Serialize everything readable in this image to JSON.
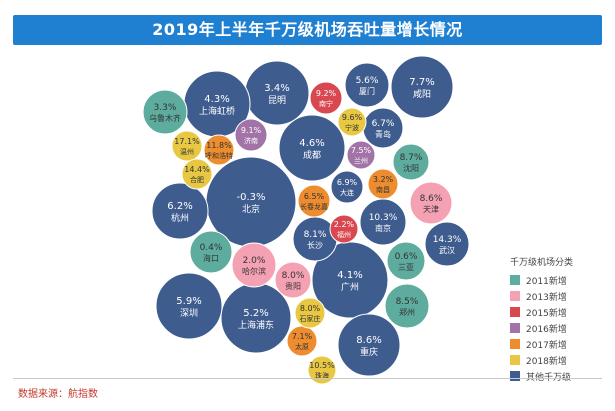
{
  "title": "2019年上半年千万级机场吞吐量增长情况",
  "source": "数据来源：航指数",
  "colors": {
    "2011新增": "#5dac9e",
    "2013新增": "#f4a1b3",
    "2015新增": "#d94851",
    "2016新增": "#a173a6",
    "2017新增": "#ed8d2f",
    "2018新增": "#e8c743",
    "其他千万级": "#3f5c8f"
  },
  "chart_data": {
    "type": "bubble",
    "title": "2019年上半年千万级机场吞吐量增长情况",
    "legend_title": "千万级机场分类",
    "legend_position": "right",
    "categories": [
      "2011新增",
      "2013新增",
      "2015新增",
      "2016新增",
      "2017新增",
      "2018新增",
      "其他千万级"
    ],
    "points": [
      {
        "city": "北京",
        "growth": "-0.3%",
        "category": "其他千万级"
      },
      {
        "city": "上海浦东",
        "growth": "5.2%",
        "category": "其他千万级"
      },
      {
        "city": "广州",
        "growth": "4.1%",
        "category": "其他千万级"
      },
      {
        "city": "成都",
        "growth": "4.6%",
        "category": "其他千万级"
      },
      {
        "city": "深圳",
        "growth": "5.9%",
        "category": "其他千万级"
      },
      {
        "city": "昆明",
        "growth": "3.4%",
        "category": "其他千万级"
      },
      {
        "city": "上海虹桥",
        "growth": "4.3%",
        "category": "其他千万级"
      },
      {
        "city": "咸阳",
        "growth": "7.7%",
        "category": "其他千万级"
      },
      {
        "city": "重庆",
        "growth": "8.6%",
        "category": "其他千万级"
      },
      {
        "city": "杭州",
        "growth": "6.2%",
        "category": "其他千万级"
      },
      {
        "city": "南京",
        "growth": "10.3%",
        "category": "其他千万级"
      },
      {
        "city": "长沙",
        "growth": "8.1%",
        "category": "其他千万级"
      },
      {
        "city": "武汉",
        "growth": "14.3%",
        "category": "其他千万级"
      },
      {
        "city": "厦门",
        "growth": "5.6%",
        "category": "其他千万级"
      },
      {
        "city": "青岛",
        "growth": "6.7%",
        "category": "其他千万级"
      },
      {
        "city": "大连",
        "growth": "6.9%",
        "category": "其他千万级"
      },
      {
        "city": "海口",
        "growth": "0.4%",
        "category": "2011新增"
      },
      {
        "city": "乌鲁木齐",
        "growth": "3.3%",
        "category": "2011新增"
      },
      {
        "city": "沈阳",
        "growth": "8.7%",
        "category": "2011新增"
      },
      {
        "city": "三亚",
        "growth": "0.6%",
        "category": "2011新增"
      },
      {
        "city": "郑州",
        "growth": "8.5%",
        "category": "2011新增"
      },
      {
        "city": "哈尔滨",
        "growth": "2.0%",
        "category": "2013新增"
      },
      {
        "city": "贵阳",
        "growth": "8.0%",
        "category": "2013新增"
      },
      {
        "city": "天津",
        "growth": "8.6%",
        "category": "2013新增"
      },
      {
        "city": "南宁",
        "growth": "9.2%",
        "category": "2015新增"
      },
      {
        "city": "福州",
        "growth": "2.2%",
        "category": "2015新增"
      },
      {
        "city": "济南",
        "growth": "9.1%",
        "category": "2016新增"
      },
      {
        "city": "兰州",
        "growth": "7.5%",
        "category": "2016新增"
      },
      {
        "city": "呼和浩特",
        "growth": "11.8%",
        "category": "2017新增"
      },
      {
        "city": "长春龙嘉",
        "growth": "6.5%",
        "category": "2017新增"
      },
      {
        "city": "南昌",
        "growth": "3.2%",
        "category": "2017新增"
      },
      {
        "city": "太原",
        "growth": "7.1%",
        "category": "2017新增"
      },
      {
        "city": "宁波",
        "growth": "9.6%",
        "category": "2018新增"
      },
      {
        "city": "温州",
        "growth": "17.1%",
        "category": "2018新增"
      },
      {
        "city": "合肥",
        "growth": "14.4%",
        "category": "2018新增"
      },
      {
        "city": "石家庄",
        "growth": "8.0%",
        "category": "2018新增"
      },
      {
        "city": "珠海",
        "growth": "10.5%",
        "category": "2018新增"
      }
    ]
  }
}
